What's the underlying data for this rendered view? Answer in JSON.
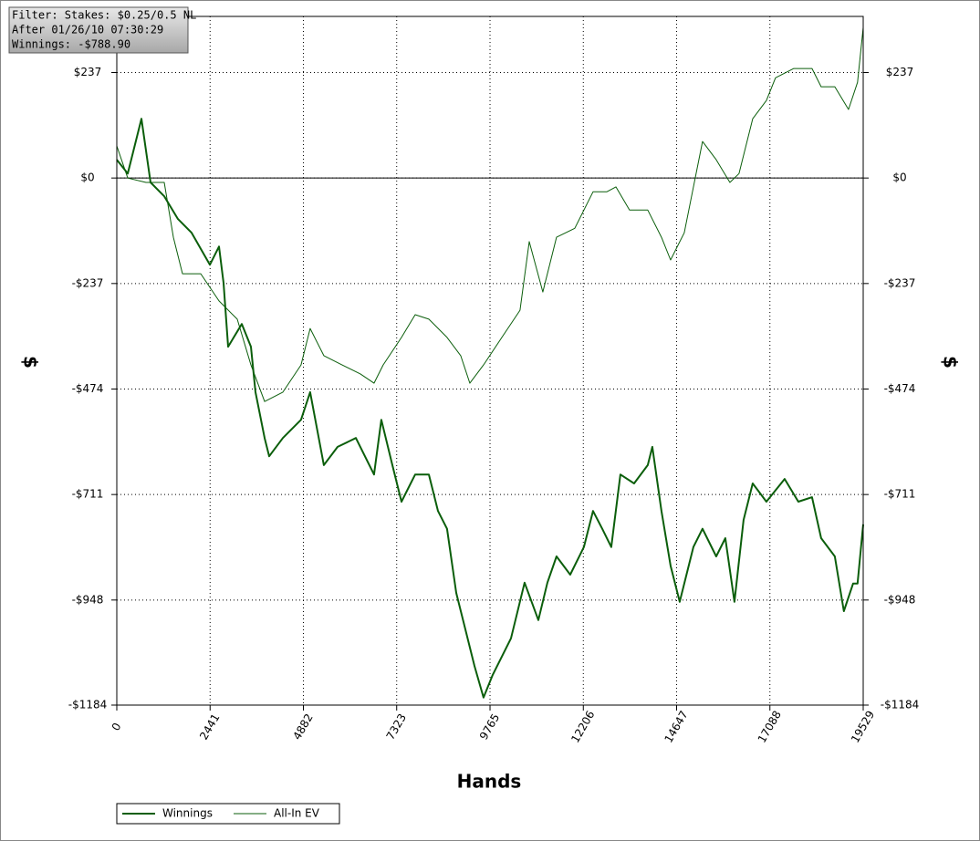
{
  "chart_data": {
    "type": "line",
    "annotations": [
      "Filter: Stakes: $0.25/0.5 NL",
      "After 01/26/10 07:30:29",
      "Winnings: -$788.90"
    ],
    "x_label": "Hands",
    "y_label": "$",
    "y2_label": "$",
    "xlim": [
      0,
      19529
    ],
    "xticks": [
      0,
      2441,
      4882,
      7323,
      9765,
      12206,
      14647,
      17088,
      19529
    ],
    "ylim": [
      -1184,
      363
    ],
    "yticks": [
      {
        "value": -1184,
        "label": "-$1184"
      },
      {
        "value": -948,
        "label": "-$948"
      },
      {
        "value": -711,
        "label": "-$711"
      },
      {
        "value": -474,
        "label": "-$474"
      },
      {
        "value": -237,
        "label": "-$237"
      },
      {
        "value": 0,
        "label": "$0"
      },
      {
        "value": 237,
        "label": "$237"
      }
    ],
    "grid": true,
    "zero_line": true,
    "legend": "bottom",
    "series": [
      {
        "name": "Winnings",
        "color": "#0b5e0b",
        "width": 2,
        "x": [
          0,
          286,
          645,
          883,
          1241,
          1599,
          1957,
          2435,
          2674,
          2793,
          2912,
          3270,
          3509,
          3628,
          3867,
          3986,
          4344,
          4821,
          5060,
          5418,
          5777,
          6254,
          6731,
          6922,
          7209,
          7448,
          7806,
          8164,
          8403,
          8641,
          8880,
          9119,
          9358,
          9596,
          9835,
          10313,
          10670,
          11029,
          11267,
          11506,
          11864,
          12222,
          12461,
          12700,
          12938,
          13177,
          13535,
          13893,
          14012,
          14251,
          14490,
          14728,
          15086,
          15325,
          15683,
          15921,
          16160,
          16399,
          16637,
          16996,
          17473,
          17831,
          18189,
          18428,
          18786,
          19024,
          19263,
          19382,
          19529
        ],
        "values": [
          41,
          10,
          133,
          -10,
          -41,
          -92,
          -123,
          -195,
          -154,
          -236,
          -379,
          -328,
          -379,
          -481,
          -584,
          -625,
          -584,
          -543,
          -481,
          -645,
          -604,
          -584,
          -666,
          -543,
          -645,
          -727,
          -666,
          -666,
          -748,
          -788,
          -932,
          -1014,
          -1096,
          -1167,
          -1116,
          -1034,
          -909,
          -993,
          -909,
          -850,
          -891,
          -829,
          -748,
          -788,
          -829,
          -666,
          -686,
          -645,
          -604,
          -748,
          -871,
          -952,
          -829,
          -788,
          -850,
          -809,
          -952,
          -768,
          -686,
          -727,
          -676,
          -727,
          -717,
          -809,
          -850,
          -973,
          -911,
          -911,
          -778
        ]
      },
      {
        "name": "All-In EV",
        "color": "#0b5e0b",
        "width": 1,
        "x": [
          0,
          286,
          765,
          1241,
          1480,
          1718,
          2196,
          2674,
          3151,
          3509,
          3867,
          4344,
          4821,
          5060,
          5418,
          5895,
          6373,
          6731,
          6970,
          7448,
          7806,
          8164,
          8641,
          8999,
          9238,
          9596,
          10074,
          10551,
          10790,
          11148,
          11506,
          11983,
          12461,
          12819,
          13058,
          13416,
          13893,
          14251,
          14490,
          14848,
          15325,
          15683,
          16041,
          16279,
          16637,
          16996,
          17234,
          17712,
          18189,
          18428,
          18786,
          19144,
          19382,
          19529
        ],
        "values": [
          72,
          0,
          -10,
          -10,
          -133,
          -215,
          -215,
          -276,
          -317,
          -420,
          -502,
          -481,
          -420,
          -338,
          -399,
          -420,
          -440,
          -461,
          -420,
          -358,
          -307,
          -317,
          -358,
          -399,
          -461,
          -420,
          -358,
          -297,
          -143,
          -256,
          -133,
          -113,
          -31,
          -31,
          -20,
          -72,
          -72,
          -133,
          -184,
          -123,
          82,
          41,
          -10,
          10,
          133,
          174,
          225,
          246,
          246,
          205,
          205,
          154,
          215,
          338
        ]
      }
    ]
  }
}
